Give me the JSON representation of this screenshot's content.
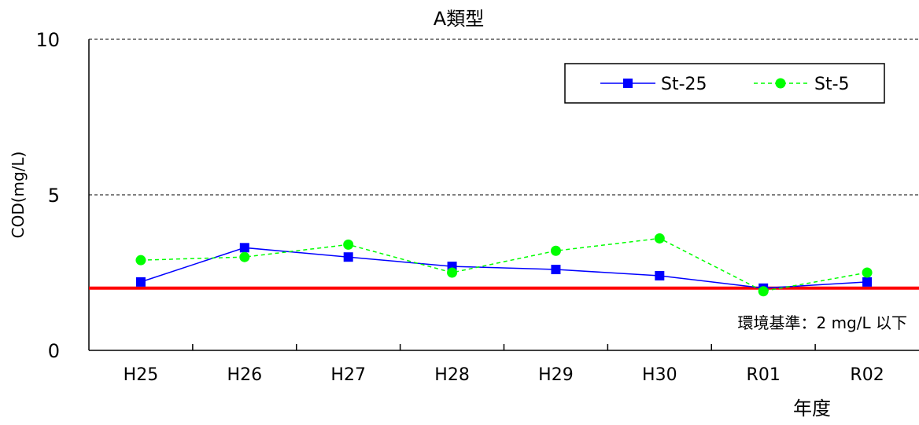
{
  "chart_data": {
    "type": "line",
    "title": "A類型",
    "xlabel": "年度",
    "ylabel": "COD(mg/L)",
    "categories": [
      "H25",
      "H26",
      "H27",
      "H28",
      "H29",
      "H30",
      "R01",
      "R02"
    ],
    "ylim": [
      0,
      10
    ],
    "yticks": [
      "0",
      "5",
      "10"
    ],
    "grid": "dashed horizontal at 5 and 10",
    "legend": "top-right",
    "series": [
      {
        "name": "St-25",
        "color": "#0000ff",
        "marker": "square",
        "line": "solid",
        "values": [
          2.2,
          3.3,
          3.0,
          2.7,
          2.6,
          2.4,
          2.0,
          2.2
        ]
      },
      {
        "name": "St-5",
        "color": "#00ff00",
        "marker": "circle",
        "line": "dashed",
        "values": [
          2.9,
          3.0,
          3.4,
          2.5,
          3.2,
          3.6,
          1.9,
          2.5
        ]
      }
    ],
    "reference_line": {
      "value": 2,
      "color": "#ff0000",
      "label": "環境基準：2 mg/L 以下"
    }
  }
}
